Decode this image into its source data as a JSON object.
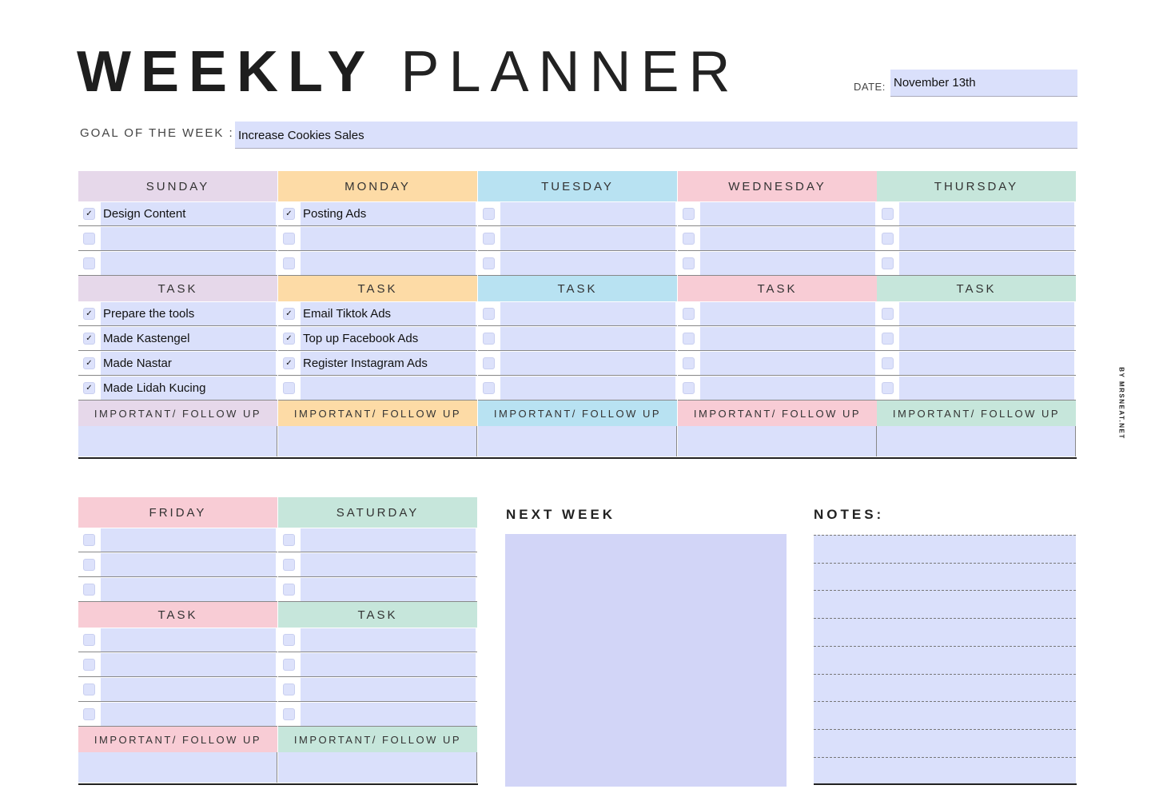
{
  "header": {
    "title_bold": "WEEKLY",
    "title_light": "PLANNER",
    "date_label": "DATE:",
    "date_value": "November 13th",
    "goal_label": "GOAL OF THE WEEK :",
    "goal_value": "Increase Cookies Sales"
  },
  "task_label": "TASK",
  "important_label": "IMPORTANT/ FOLLOW UP",
  "days": [
    {
      "name": "SUNDAY",
      "color": "#e6d8ea",
      "top": [
        {
          "text": "Design Content",
          "checked": true
        },
        {
          "text": "",
          "checked": false
        },
        {
          "text": "",
          "checked": false
        }
      ],
      "tasks": [
        {
          "text": "Prepare the tools",
          "checked": true
        },
        {
          "text": "Made Kastengel",
          "checked": true
        },
        {
          "text": "Made Nastar",
          "checked": true
        },
        {
          "text": "Made Lidah Kucing",
          "checked": true
        }
      ]
    },
    {
      "name": "MONDAY",
      "color": "#fddba6",
      "top": [
        {
          "text": "Posting Ads",
          "checked": true
        },
        {
          "text": "",
          "checked": false
        },
        {
          "text": "",
          "checked": false
        }
      ],
      "tasks": [
        {
          "text": "Email Tiktok Ads",
          "checked": true
        },
        {
          "text": "Top up Facebook Ads",
          "checked": true
        },
        {
          "text": "Register Instagram Ads",
          "checked": true
        },
        {
          "text": "",
          "checked": false
        }
      ]
    },
    {
      "name": "TUESDAY",
      "color": "#b8e2f2",
      "top": [
        {
          "text": "",
          "checked": false
        },
        {
          "text": "",
          "checked": false
        },
        {
          "text": "",
          "checked": false
        }
      ],
      "tasks": [
        {
          "text": "",
          "checked": false
        },
        {
          "text": "",
          "checked": false
        },
        {
          "text": "",
          "checked": false
        },
        {
          "text": "",
          "checked": false
        }
      ]
    },
    {
      "name": "WEDNESDAY",
      "color": "#f8ccd5",
      "top": [
        {
          "text": "",
          "checked": false
        },
        {
          "text": "",
          "checked": false
        },
        {
          "text": "",
          "checked": false
        }
      ],
      "tasks": [
        {
          "text": "",
          "checked": false
        },
        {
          "text": "",
          "checked": false
        },
        {
          "text": "",
          "checked": false
        },
        {
          "text": "",
          "checked": false
        }
      ]
    },
    {
      "name": "THURSDAY",
      "color": "#c6e6db",
      "top": [
        {
          "text": "",
          "checked": false
        },
        {
          "text": "",
          "checked": false
        },
        {
          "text": "",
          "checked": false
        }
      ],
      "tasks": [
        {
          "text": "",
          "checked": false
        },
        {
          "text": "",
          "checked": false
        },
        {
          "text": "",
          "checked": false
        },
        {
          "text": "",
          "checked": false
        }
      ]
    },
    {
      "name": "FRIDAY",
      "color": "#f8ccd5",
      "top": [
        {
          "text": "",
          "checked": false
        },
        {
          "text": "",
          "checked": false
        },
        {
          "text": "",
          "checked": false
        }
      ],
      "tasks": [
        {
          "text": "",
          "checked": false
        },
        {
          "text": "",
          "checked": false
        },
        {
          "text": "",
          "checked": false
        },
        {
          "text": "",
          "checked": false
        }
      ]
    },
    {
      "name": "SATURDAY",
      "color": "#c6e6db",
      "top": [
        {
          "text": "",
          "checked": false
        },
        {
          "text": "",
          "checked": false
        },
        {
          "text": "",
          "checked": false
        }
      ],
      "tasks": [
        {
          "text": "",
          "checked": false
        },
        {
          "text": "",
          "checked": false
        },
        {
          "text": "",
          "checked": false
        },
        {
          "text": "",
          "checked": false
        }
      ]
    }
  ],
  "next_week": {
    "label": "NEXT WEEK",
    "color": "#d2d5f7"
  },
  "notes": {
    "label": "NOTES:"
  },
  "credit": "BY MRSNEAT.NET",
  "check_glyph": "✓"
}
